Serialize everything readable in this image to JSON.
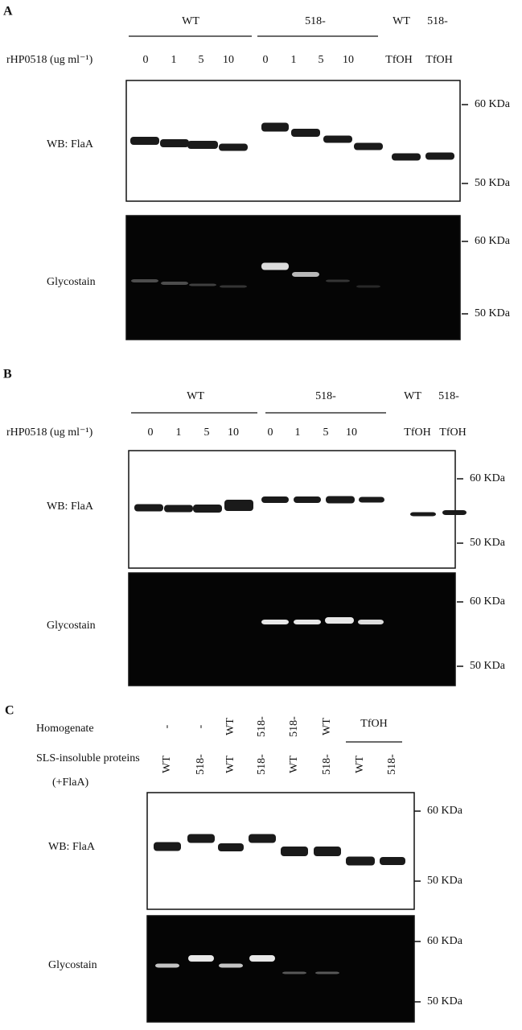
{
  "panels": [
    {
      "label": "A",
      "groups": [
        "WT",
        "518-"
      ],
      "tfoh_groups": [
        "WT",
        "518-"
      ],
      "dose_label": "rHP0518 (ug ml⁻¹)",
      "lanes": [
        "0",
        "1",
        "5",
        "10",
        "0",
        "1",
        "5",
        "10",
        "TfOH",
        "TfOH"
      ],
      "blots": [
        {
          "label": "WB: FlaA",
          "markers": [
            "60 KDa",
            "50 KDa"
          ]
        },
        {
          "label": "Glycostain",
          "markers": [
            "60 KDa",
            "50 KDa"
          ]
        }
      ]
    },
    {
      "label": "B",
      "groups": [
        "WT",
        "518-"
      ],
      "tfoh_groups": [
        "WT",
        "518-"
      ],
      "dose_label": "rHP0518 (ug ml⁻¹)",
      "lanes": [
        "0",
        "1",
        "5",
        "10",
        "0",
        "1",
        "5",
        "10",
        "TfOH",
        "TfOH"
      ],
      "blots": [
        {
          "label": "WB: FlaA",
          "markers": [
            "60 KDa",
            "50 KDa"
          ]
        },
        {
          "label": "Glycostain",
          "markers": [
            "60 KDa",
            "50 KDa"
          ]
        }
      ]
    }
  ],
  "panel_c": {
    "label": "C",
    "homogenate_label": "Homogenate",
    "homogenate": [
      "-",
      "-",
      "WT",
      "518-",
      "518-",
      "WT"
    ],
    "tfoh": "TfOH",
    "sls_label": "SLS-insoluble proteins",
    "sls_sublabel": "(+FlaA)",
    "lanes": [
      "WT",
      "518-",
      "WT",
      "518-",
      "WT",
      "518-",
      "WT",
      "518-"
    ],
    "blots": [
      {
        "label": "WB: FlaA",
        "markers": [
          "60 KDa",
          "50 KDa"
        ]
      },
      {
        "label": "Glycostain",
        "markers": [
          "60 KDa",
          "50 KDa"
        ]
      }
    ]
  }
}
